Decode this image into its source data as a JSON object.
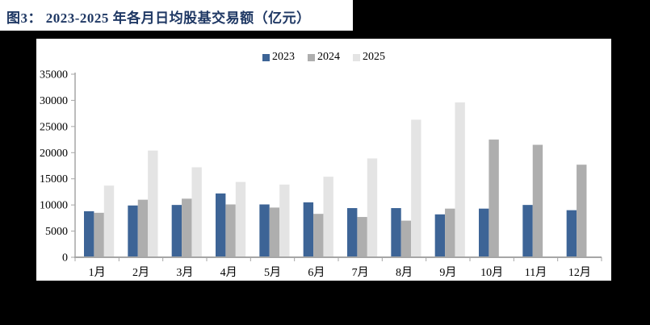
{
  "page": {
    "background_color": "#000000",
    "panel_color": "#ffffff",
    "title": "图3：  2023-2025 年各月日均股基交易额（亿元）",
    "title_color": "#1F3864"
  },
  "chart_data": {
    "type": "bar",
    "title": "图3：2023-2025 年各月日均股基交易额（亿元）",
    "unit": "亿元",
    "categories": [
      "1月",
      "2月",
      "3月",
      "4月",
      "5月",
      "6月",
      "7月",
      "8月",
      "9月",
      "10月",
      "11月",
      "12月"
    ],
    "series": [
      {
        "name": "2023",
        "color": "#3D6496",
        "values": [
          8800,
          9900,
          10000,
          12200,
          10100,
          10500,
          9400,
          9400,
          8200,
          9300,
          10000,
          9000
        ]
      },
      {
        "name": "2024",
        "color": "#AEAEAE",
        "values": [
          8500,
          11000,
          11200,
          10100,
          9500,
          8300,
          7700,
          7000,
          9300,
          22500,
          21500,
          17700
        ]
      },
      {
        "name": "2025",
        "color": "#E4E4E4",
        "values": [
          13700,
          20400,
          17200,
          14400,
          13900,
          15400,
          18900,
          26300,
          29600,
          null,
          null,
          null
        ]
      }
    ],
    "ylim": [
      0,
      35000
    ],
    "ytick_step": 5000,
    "ytick_labels": [
      "0",
      "5000",
      "10000",
      "15000",
      "20000",
      "25000",
      "30000",
      "35000"
    ],
    "xlabel": "",
    "ylabel": "",
    "grid": false,
    "legend_position": "top-center",
    "axis_color": "#A6A6A6",
    "tick_label_color": "#000000"
  }
}
